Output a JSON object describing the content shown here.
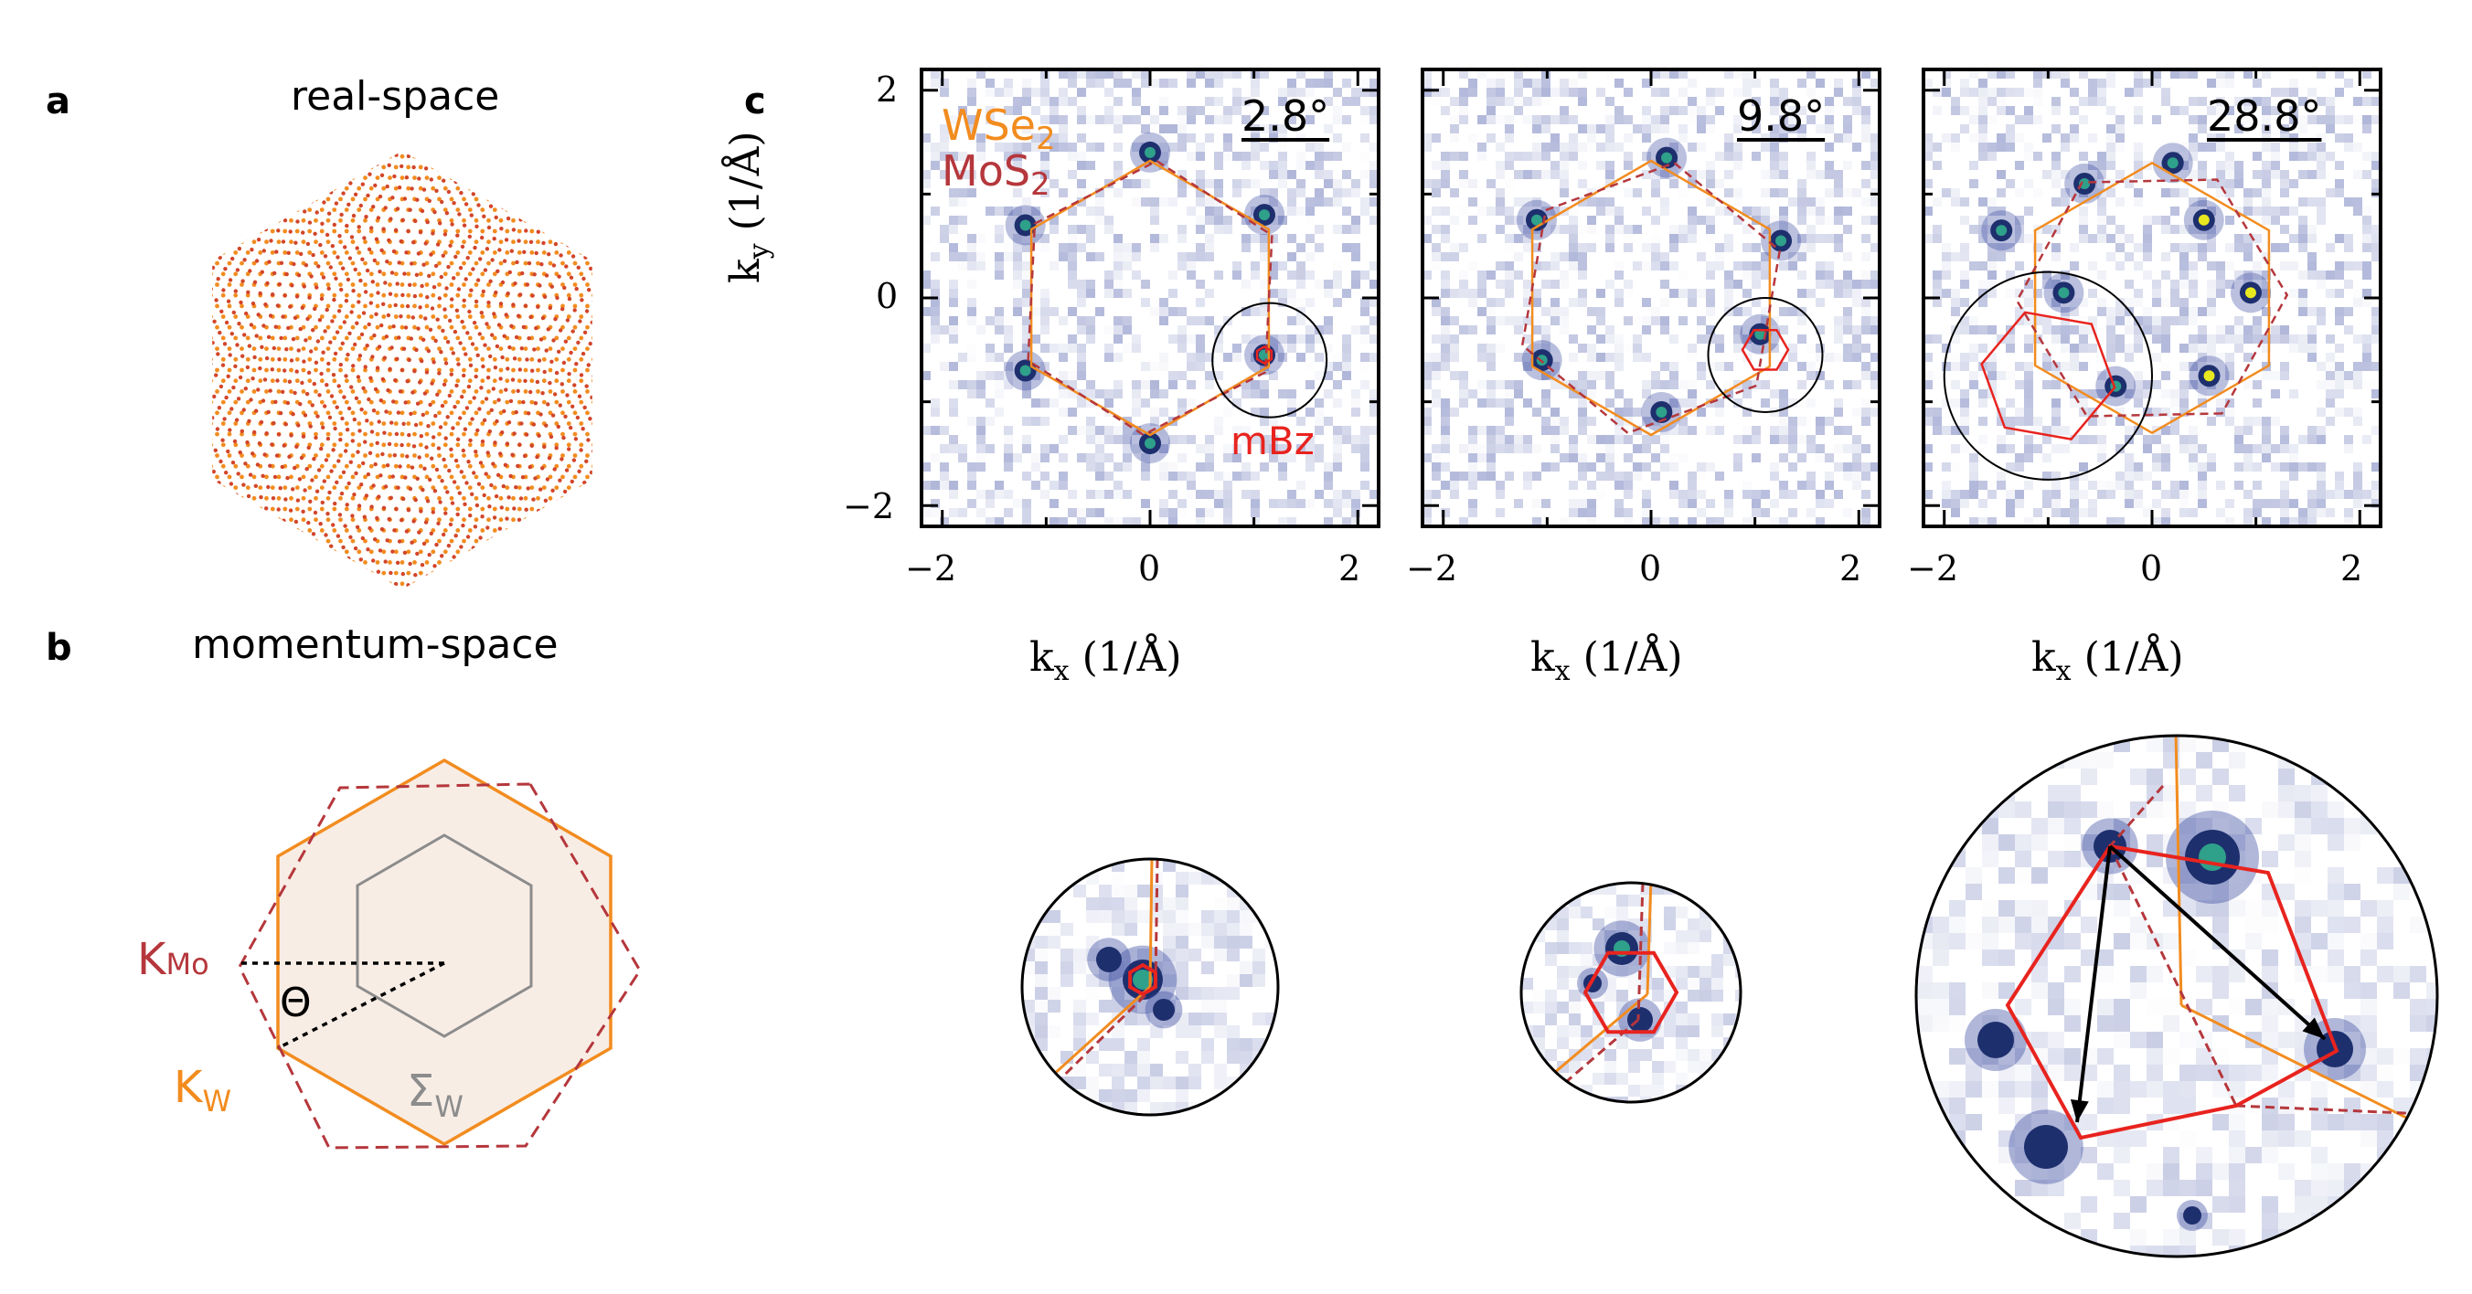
{
  "figure": {
    "panels": {
      "a": {
        "letter": "a",
        "title": "real-space"
      },
      "b": {
        "letter": "b",
        "title": "momentum-space",
        "k_mo_main": "K",
        "k_mo_sub": "Mo",
        "k_w_main": "K",
        "k_w_sub": "W",
        "theta": "Θ",
        "sigma_main": "Σ",
        "sigma_sub": "W"
      },
      "c": {
        "letter": "c"
      }
    },
    "legend": {
      "wse2_main": "WSe",
      "wse2_sub": "2",
      "mos2_main": "MoS",
      "mos2_sub": "2",
      "mbz": "mBz"
    },
    "plots": [
      {
        "angle": "2.8°"
      },
      {
        "angle": "9.8°"
      },
      {
        "angle": "28.8°"
      }
    ],
    "axes": {
      "x_ticks": [
        "−2",
        "0",
        "2"
      ],
      "y_ticks": [
        "2",
        "0",
        "−2"
      ],
      "xlabel": "k",
      "xlabel_sub": "x",
      "xlabel_units": "(1/Å)",
      "ylabel": "k",
      "ylabel_sub": "y",
      "ylabel_units": "(1/Å)"
    },
    "colors": {
      "wse2": "#f28c1f",
      "mos2": "#b5373c",
      "mbz": "#e8231e",
      "spot": "#2a3a7a"
    }
  }
}
